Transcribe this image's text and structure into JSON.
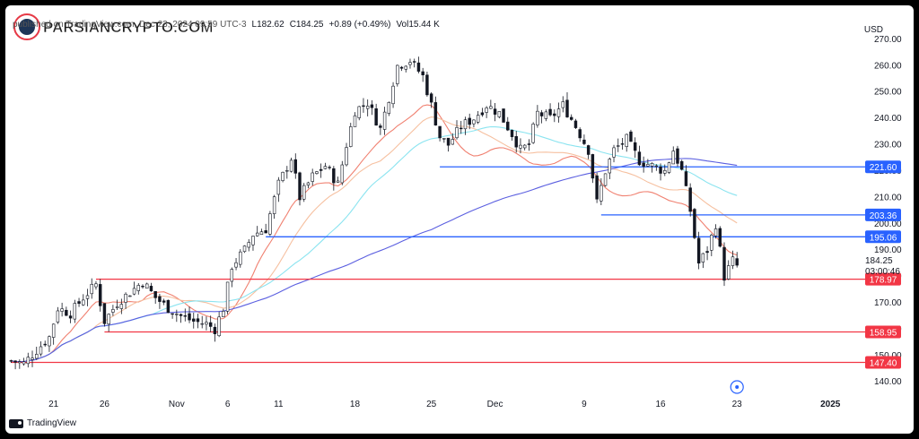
{
  "header": {
    "published": "published on TradingView.com, Dec 23, 2024 09:59 UTC-3",
    "low": "L182.62",
    "close": "C184.25",
    "change": "+0.89 (+0.49%)",
    "volume": "Vol15.44 K"
  },
  "watermark": "PARSIANCRYPTO.COM",
  "currency": "USD",
  "footer": {
    "brand": "TradingView"
  },
  "colors": {
    "candle": "#131722",
    "ema_red": "#f08070",
    "ema_orange": "#f6c0a0",
    "ema_cyan": "#8be4f0",
    "sma_blue": "#5b5fe0",
    "blue_level": "#2962ff",
    "red_level": "#f23645"
  },
  "chart_data": {
    "type": "candlestick",
    "ylim": [
      136,
      272
    ],
    "y_ticks": [
      140,
      150,
      160,
      170,
      180,
      190,
      200,
      210,
      220,
      230,
      240,
      250,
      260,
      270
    ],
    "x_ticks": [
      {
        "label": "21",
        "i": 10
      },
      {
        "label": "26",
        "i": 22
      },
      {
        "label": "Nov",
        "i": 39
      },
      {
        "label": "6",
        "i": 51
      },
      {
        "label": "11",
        "i": 63
      },
      {
        "label": "18",
        "i": 81
      },
      {
        "label": "25",
        "i": 99
      },
      {
        "label": "Dec",
        "i": 114
      },
      {
        "label": "9",
        "i": 135
      },
      {
        "label": "16",
        "i": 153
      },
      {
        "label": "23",
        "i": 171
      },
      {
        "label": "2025",
        "i": 193
      }
    ],
    "bars_total": 200,
    "price_anchors": [
      [
        0,
        148
      ],
      [
        3,
        147
      ],
      [
        6,
        152
      ],
      [
        9,
        157
      ],
      [
        11,
        168
      ],
      [
        14,
        166
      ],
      [
        17,
        172
      ],
      [
        20,
        177
      ],
      [
        22,
        163
      ],
      [
        25,
        170
      ],
      [
        28,
        174
      ],
      [
        31,
        178
      ],
      [
        34,
        172
      ],
      [
        37,
        168
      ],
      [
        40,
        165
      ],
      [
        43,
        163
      ],
      [
        46,
        162
      ],
      [
        48,
        160
      ],
      [
        50,
        168
      ],
      [
        52,
        184
      ],
      [
        55,
        190
      ],
      [
        57,
        196
      ],
      [
        60,
        198
      ],
      [
        63,
        215
      ],
      [
        66,
        225
      ],
      [
        68,
        210
      ],
      [
        71,
        218
      ],
      [
        74,
        222
      ],
      [
        77,
        215
      ],
      [
        79,
        230
      ],
      [
        81,
        243
      ],
      [
        84,
        246
      ],
      [
        87,
        236
      ],
      [
        89,
        248
      ],
      [
        91,
        260
      ],
      [
        94,
        262
      ],
      [
        97,
        256
      ],
      [
        99,
        245
      ],
      [
        101,
        233
      ],
      [
        103,
        230
      ],
      [
        106,
        237
      ],
      [
        109,
        240
      ],
      [
        112,
        245
      ],
      [
        115,
        242
      ],
      [
        118,
        234
      ],
      [
        120,
        228
      ],
      [
        122,
        230
      ],
      [
        124,
        242
      ],
      [
        127,
        240
      ],
      [
        130,
        245
      ],
      [
        133,
        237
      ],
      [
        136,
        228
      ],
      [
        138,
        208
      ],
      [
        140,
        220
      ],
      [
        142,
        228
      ],
      [
        145,
        232
      ],
      [
        148,
        224
      ],
      [
        151,
        222
      ],
      [
        154,
        220
      ],
      [
        156,
        228
      ],
      [
        158,
        220
      ],
      [
        160,
        205
      ],
      [
        162,
        185
      ],
      [
        164,
        190
      ],
      [
        166,
        200
      ],
      [
        168,
        180
      ],
      [
        170,
        186
      ],
      [
        171,
        184
      ]
    ],
    "candles_shown": 172,
    "last_price": "184.25",
    "countdown": "03:00:46",
    "levels": [
      {
        "value": 221.6,
        "label": "221.60",
        "color": "blue",
        "from_i": 101
      },
      {
        "value": 203.36,
        "label": "203.36",
        "color": "blue",
        "from_i": 139
      },
      {
        "value": 195.06,
        "label": "195.06",
        "color": "blue",
        "from_i": 60
      },
      {
        "value": 178.97,
        "label": "178.97",
        "color": "red",
        "from_i": 20
      },
      {
        "value": 158.95,
        "label": "158.95",
        "color": "red",
        "from_i": 22
      },
      {
        "value": 147.4,
        "label": "147.40",
        "color": "red",
        "from_i": 0
      }
    ],
    "moving_averages": [
      {
        "color_key": "ema_red",
        "period": 10,
        "end_value": 188
      },
      {
        "color_key": "ema_orange",
        "period": 20,
        "end_value": 198
      },
      {
        "color_key": "ema_cyan",
        "period": 34,
        "end_value": 210
      },
      {
        "color_key": "sma_blue",
        "period": 100,
        "end_value": 215
      }
    ]
  }
}
